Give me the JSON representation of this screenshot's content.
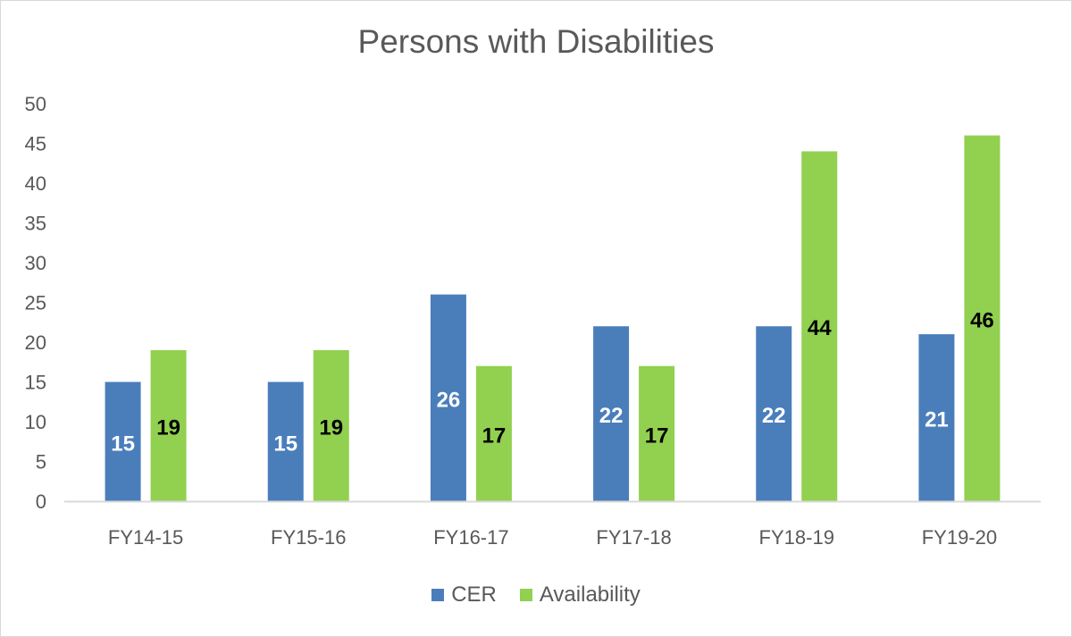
{
  "chart_data": {
    "type": "bar",
    "title": "Persons with Disabilities",
    "xlabel": "",
    "ylabel": "",
    "categories": [
      "FY14-15",
      "FY15-16",
      "FY16-17",
      "FY17-18",
      "FY18-19",
      "FY19-20"
    ],
    "series": [
      {
        "name": "CER",
        "values": [
          15,
          15,
          26,
          22,
          22,
          21
        ],
        "color": "#4a7ebb",
        "label_color": "#ffffff"
      },
      {
        "name": "Availability",
        "values": [
          19,
          19,
          17,
          17,
          44,
          46
        ],
        "color": "#92d050",
        "label_color": "#000000"
      }
    ],
    "ylim": [
      0,
      50
    ],
    "yticks": [
      "0",
      "5",
      "10",
      "15",
      "20",
      "25",
      "30",
      "35",
      "40",
      "45",
      "50"
    ],
    "grid": false,
    "legend_position": "bottom",
    "axis_color": "#d9d9d9",
    "text_color": "#595959"
  }
}
